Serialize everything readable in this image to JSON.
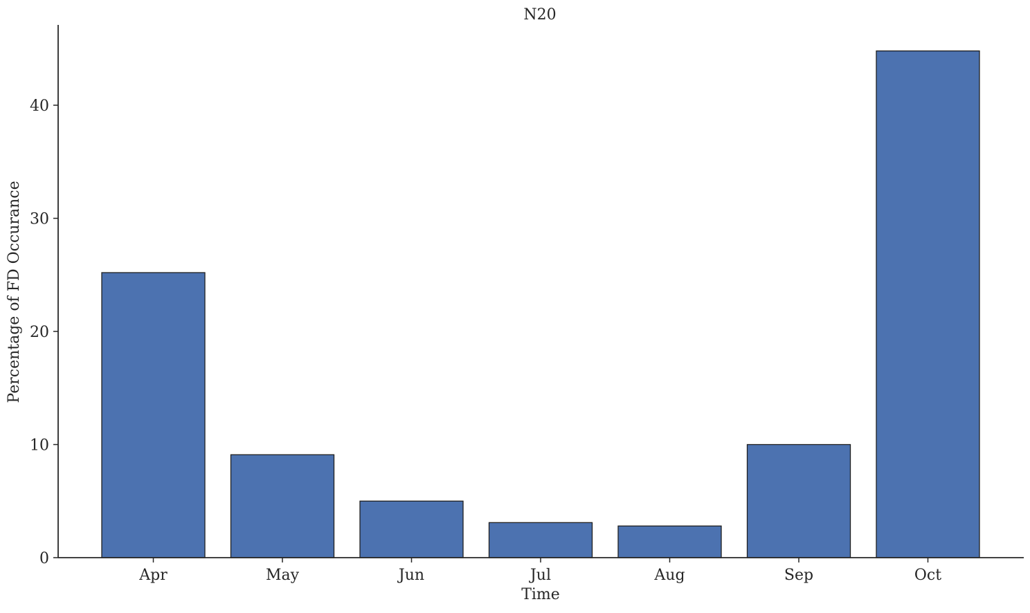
{
  "chart_data": {
    "type": "bar",
    "title": "N20",
    "xlabel": "Time",
    "ylabel": "Percentage of FD Occurance",
    "categories": [
      "Apr",
      "May",
      "Jun",
      "Jul",
      "Aug",
      "Sep",
      "Oct"
    ],
    "values": [
      25.2,
      9.1,
      5.0,
      3.1,
      2.8,
      10.0,
      44.8
    ],
    "yticks": [
      0,
      10,
      20,
      30,
      40
    ],
    "ylim": [
      0,
      47.1
    ],
    "grid": false,
    "bar_color": "#4c72b0",
    "edge_color": "#1f1f1f"
  }
}
